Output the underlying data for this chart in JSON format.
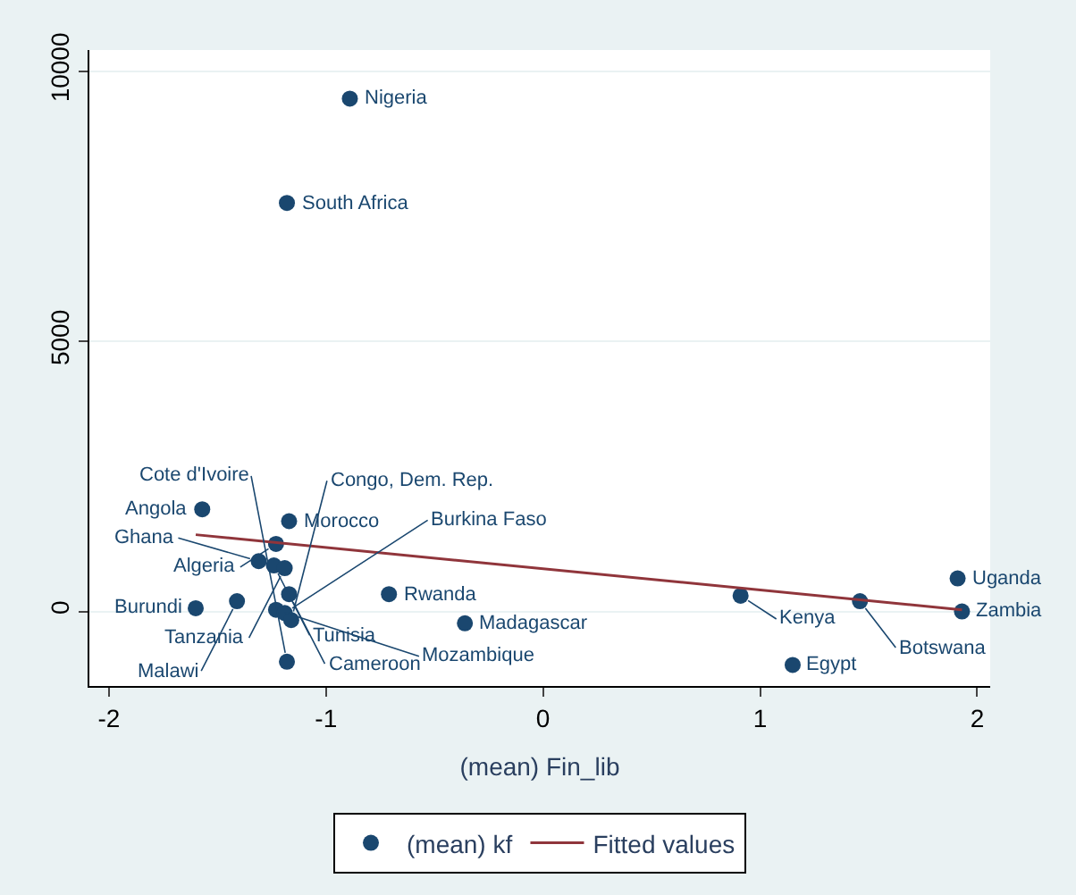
{
  "chart_data": {
    "type": "scatter",
    "xlabel": "(mean) Fin_lib",
    "xlim": [
      -2.09,
      2.06
    ],
    "xticks": [
      -2,
      -1,
      0,
      1,
      2
    ],
    "ylim": [
      -1380,
      10390
    ],
    "yticks": [
      0,
      5000,
      10000
    ],
    "grid": "y",
    "legend": "bottom",
    "marker": "circle",
    "series": [
      {
        "name": "(mean) kf",
        "color": "#1a476f",
        "x": [
          -0.89,
          -1.18,
          -1.57,
          -1.17,
          -1.23,
          -1.31,
          -1.24,
          -1.19,
          -1.17,
          -0.71,
          -1.6,
          -1.41,
          -1.23,
          -1.19,
          -1.16,
          -0.36,
          -1.18,
          0.91,
          1.46,
          1.91,
          1.93,
          1.15
        ],
        "values": [
          9490,
          7560,
          1890,
          1670,
          1250,
          930,
          850,
          800,
          320,
          320,
          60,
          190,
          30,
          -30,
          -160,
          -220,
          -930,
          290,
          190,
          610,
          0,
          -990
        ]
      },
      {
        "name": "Fitted values",
        "type": "line",
        "color": "#90353b",
        "line_style": "solid",
        "marker": "none",
        "x": [
          -1.6,
          1.93
        ],
        "values": [
          1420,
          30
        ]
      }
    ],
    "annotations": [
      {
        "text": "Nigeria",
        "x": -0.89,
        "y": 9490
      },
      {
        "text": "South Africa",
        "x": -1.18,
        "y": 7560
      },
      {
        "text": "Angola",
        "x": -1.57,
        "y": 1890
      },
      {
        "text": "Morocco",
        "x": -1.17,
        "y": 1670
      },
      {
        "text": "Algeria",
        "x": -1.23,
        "y": 1250
      },
      {
        "text": "Ghana",
        "x": -1.31,
        "y": 930
      },
      {
        "text": "Tunisia",
        "x": -1.24,
        "y": 850
      },
      {
        "text": "Tanzania",
        "x": -1.19,
        "y": 800
      },
      {
        "text": "Cameroon",
        "x": -1.17,
        "y": 320
      },
      {
        "text": "Rwanda",
        "x": -0.71,
        "y": 320
      },
      {
        "text": "Burundi",
        "x": -1.6,
        "y": 60
      },
      {
        "text": "Malawi",
        "x": -1.41,
        "y": 190
      },
      {
        "text": "Mozambique",
        "x": -1.23,
        "y": 30
      },
      {
        "text": "Burkina Faso",
        "x": -1.19,
        "y": -30
      },
      {
        "text": "Congo, Dem. Rep.",
        "x": -1.16,
        "y": -160
      },
      {
        "text": "Madagascar",
        "x": -0.36,
        "y": -220
      },
      {
        "text": "Cote d'Ivoire",
        "x": -1.18,
        "y": -930
      },
      {
        "text": "Kenya",
        "x": 0.91,
        "y": 290
      },
      {
        "text": "Botswana",
        "x": 1.46,
        "y": 190
      },
      {
        "text": "Uganda",
        "x": 1.91,
        "y": 610
      },
      {
        "text": "Zambia",
        "x": 1.93,
        "y": 0
      },
      {
        "text": "Egypt",
        "x": 1.15,
        "y": -990
      }
    ]
  }
}
